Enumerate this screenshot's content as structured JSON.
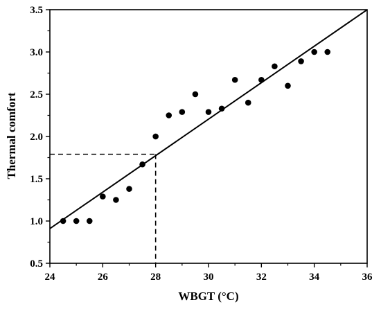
{
  "chart_data": {
    "type": "scatter",
    "xlabel": "WBGT (°C)",
    "ylabel": "Thermal comfort",
    "xlim": [
      24,
      36
    ],
    "ylim": [
      0.5,
      3.5
    ],
    "xticks": [
      "24",
      "26",
      "28",
      "30",
      "32",
      "34",
      "36"
    ],
    "yticks": [
      "0.5",
      "1.0",
      "1.5",
      "2.0",
      "2.5",
      "3.0",
      "3.5"
    ],
    "grid": false,
    "series": [
      {
        "points": [
          [
            24.5,
            1.0
          ],
          [
            25.0,
            1.0
          ],
          [
            25.5,
            1.0
          ],
          [
            26.0,
            1.29
          ],
          [
            26.5,
            1.25
          ],
          [
            27.0,
            1.38
          ],
          [
            27.5,
            1.67
          ],
          [
            28.0,
            2.0
          ],
          [
            28.5,
            2.25
          ],
          [
            29.0,
            2.29
          ],
          [
            29.5,
            2.5
          ],
          [
            30.0,
            2.29
          ],
          [
            30.5,
            2.33
          ],
          [
            31.0,
            2.67
          ],
          [
            31.5,
            2.4
          ],
          [
            32.0,
            2.67
          ],
          [
            32.5,
            2.83
          ],
          [
            33.0,
            2.6
          ],
          [
            33.5,
            2.89
          ],
          [
            34.0,
            3.0
          ],
          [
            34.5,
            3.0
          ]
        ],
        "color": "#000000"
      }
    ],
    "fit_line": {
      "x": [
        24,
        36
      ],
      "y": [
        0.91,
        3.5
      ],
      "color": "#000000"
    },
    "reference_lines": {
      "x": 28,
      "y": 1.79,
      "style": "dashed"
    }
  }
}
